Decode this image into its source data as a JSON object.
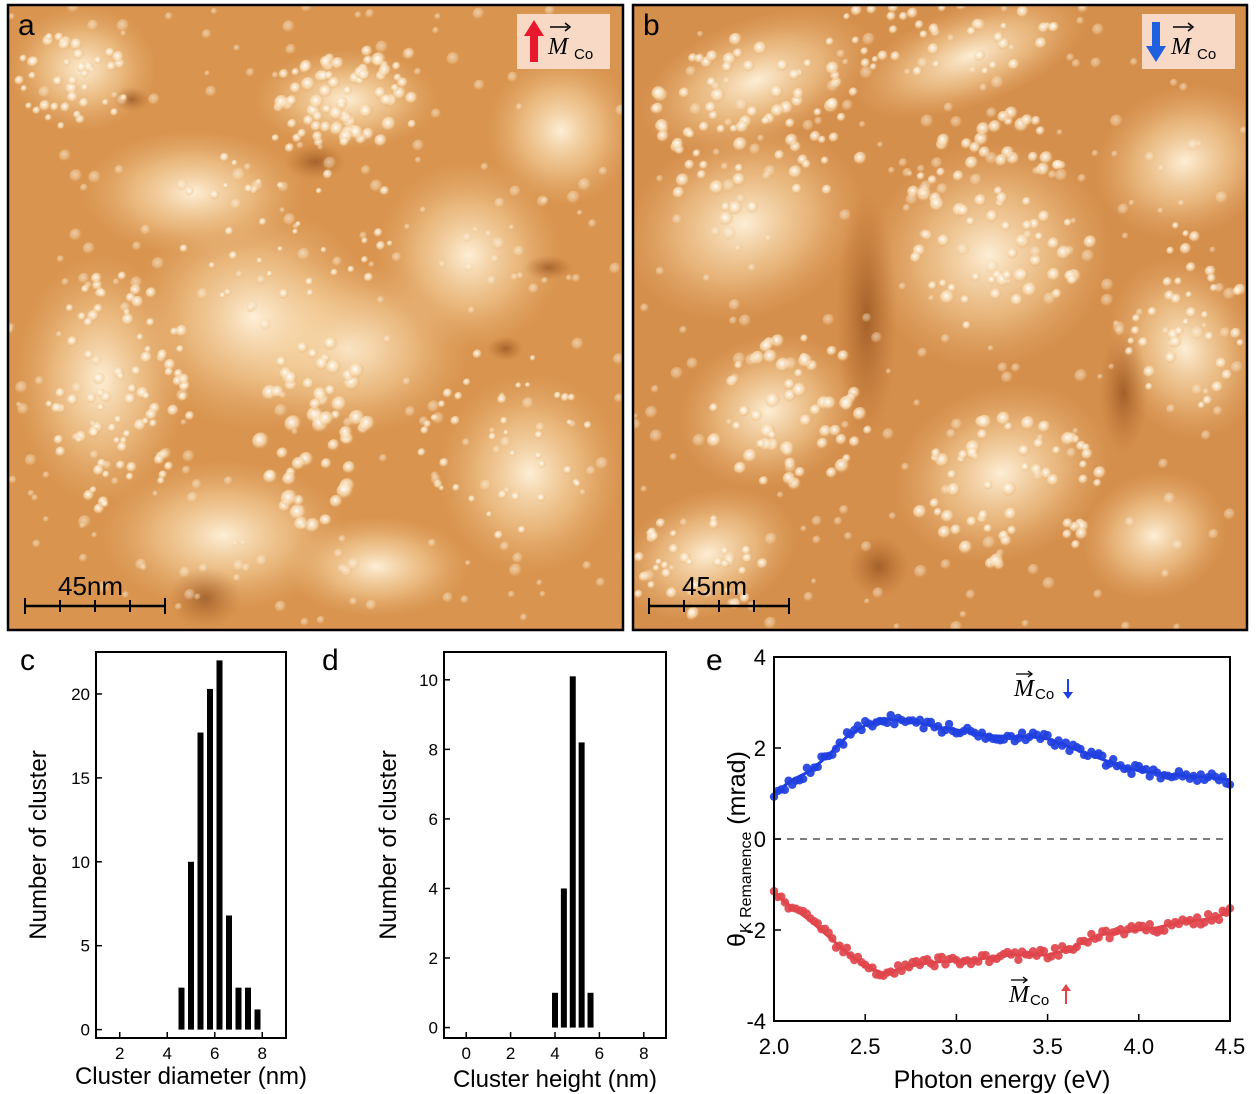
{
  "panels": {
    "a": {
      "letter": "a",
      "scale_bar_label": "45nm",
      "legend": {
        "symbol": "M",
        "subscript": "Co",
        "arrow": "up",
        "arrow_color": "#e8192c"
      }
    },
    "b": {
      "letter": "b",
      "scale_bar_label": "45nm",
      "legend": {
        "symbol": "M",
        "subscript": "Co",
        "arrow": "down",
        "arrow_color": "#1f5fe0"
      }
    }
  },
  "colors": {
    "afm_dark": "#a4541a",
    "afm_mid": "#d7924f",
    "afm_light": "#fff1d8",
    "bar": "#000000",
    "blue_series": "#1f3fe0",
    "red_series": "#e0454c",
    "zero_line": "#555555"
  },
  "chart_data": [
    {
      "panel": "c",
      "type": "bar",
      "xlabel": "Cluster diameter (nm)",
      "ylabel": "Number of cluster",
      "xlim": [
        1,
        9
      ],
      "ylim": [
        -0.5,
        22.5
      ],
      "xticks": [
        2,
        4,
        6,
        8
      ],
      "yticks": [
        0,
        5,
        10,
        15,
        20
      ],
      "x": [
        4.6,
        5.0,
        5.4,
        5.8,
        6.2,
        6.6,
        7.0,
        7.4,
        7.8
      ],
      "values": [
        2.5,
        10,
        17.7,
        20.3,
        22,
        6.8,
        2.5,
        2.5,
        1.2
      ]
    },
    {
      "panel": "d",
      "type": "bar",
      "xlabel": "Cluster height (nm)",
      "ylabel": "Number of cluster",
      "xlim": [
        -1,
        9
      ],
      "ylim": [
        -0.3,
        10.8
      ],
      "xticks": [
        0,
        2,
        4,
        6,
        8
      ],
      "yticks": [
        0,
        2,
        4,
        6,
        8,
        10
      ],
      "x": [
        4.0,
        4.4,
        4.8,
        5.2,
        5.6
      ],
      "values": [
        1,
        4,
        10.1,
        8.2,
        1
      ]
    },
    {
      "panel": "e",
      "type": "scatter",
      "xlabel": "Photon energy (eV)",
      "ylabel": "θ",
      "ylabel_sub": "K Remanence",
      "ylabel_unit": "(mrad)",
      "xlim": [
        2.0,
        4.5
      ],
      "ylim": [
        -4,
        4
      ],
      "xticks": [
        2.0,
        2.5,
        3.0,
        3.5,
        4.0,
        4.5
      ],
      "ytick_labels": [
        "4",
        "2",
        "0",
        "-2",
        "-4"
      ],
      "ytick_values": [
        4,
        2,
        0,
        -2,
        -4
      ],
      "x_tick_labels": [
        "2.0",
        "2.5",
        "3.0",
        "3.5",
        "4.0",
        "4.5"
      ],
      "series": [
        {
          "name": "M Co down",
          "label_symbol": "M",
          "label_subscript": "Co",
          "arrow": "down",
          "color": "#1f3fe0",
          "x": [
            2.0,
            2.1,
            2.2,
            2.3,
            2.4,
            2.5,
            2.6,
            2.7,
            2.8,
            2.9,
            3.0,
            3.1,
            3.2,
            3.3,
            3.4,
            3.5,
            3.6,
            3.7,
            3.8,
            3.9,
            4.0,
            4.1,
            4.2,
            4.3,
            4.4,
            4.5
          ],
          "y": [
            1.0,
            1.3,
            1.5,
            1.85,
            2.25,
            2.5,
            2.65,
            2.6,
            2.55,
            2.45,
            2.4,
            2.32,
            2.27,
            2.25,
            2.25,
            2.2,
            2.05,
            1.9,
            1.75,
            1.6,
            1.5,
            1.45,
            1.4,
            1.38,
            1.35,
            1.3
          ]
        },
        {
          "name": "M Co up",
          "label_symbol": "M",
          "label_subscript": "Co",
          "arrow": "up",
          "color": "#e0454c",
          "x": [
            2.0,
            2.1,
            2.2,
            2.3,
            2.4,
            2.5,
            2.6,
            2.7,
            2.8,
            2.9,
            3.0,
            3.1,
            3.2,
            3.3,
            3.4,
            3.5,
            3.6,
            3.7,
            3.8,
            3.9,
            4.0,
            4.1,
            4.2,
            4.3,
            4.4,
            4.5
          ],
          "y": [
            -1.2,
            -1.5,
            -1.8,
            -2.15,
            -2.5,
            -2.8,
            -2.95,
            -2.85,
            -2.75,
            -2.7,
            -2.68,
            -2.65,
            -2.6,
            -2.55,
            -2.55,
            -2.55,
            -2.45,
            -2.25,
            -2.1,
            -2.05,
            -2.0,
            -1.95,
            -1.85,
            -1.8,
            -1.75,
            -1.6
          ]
        }
      ]
    }
  ]
}
